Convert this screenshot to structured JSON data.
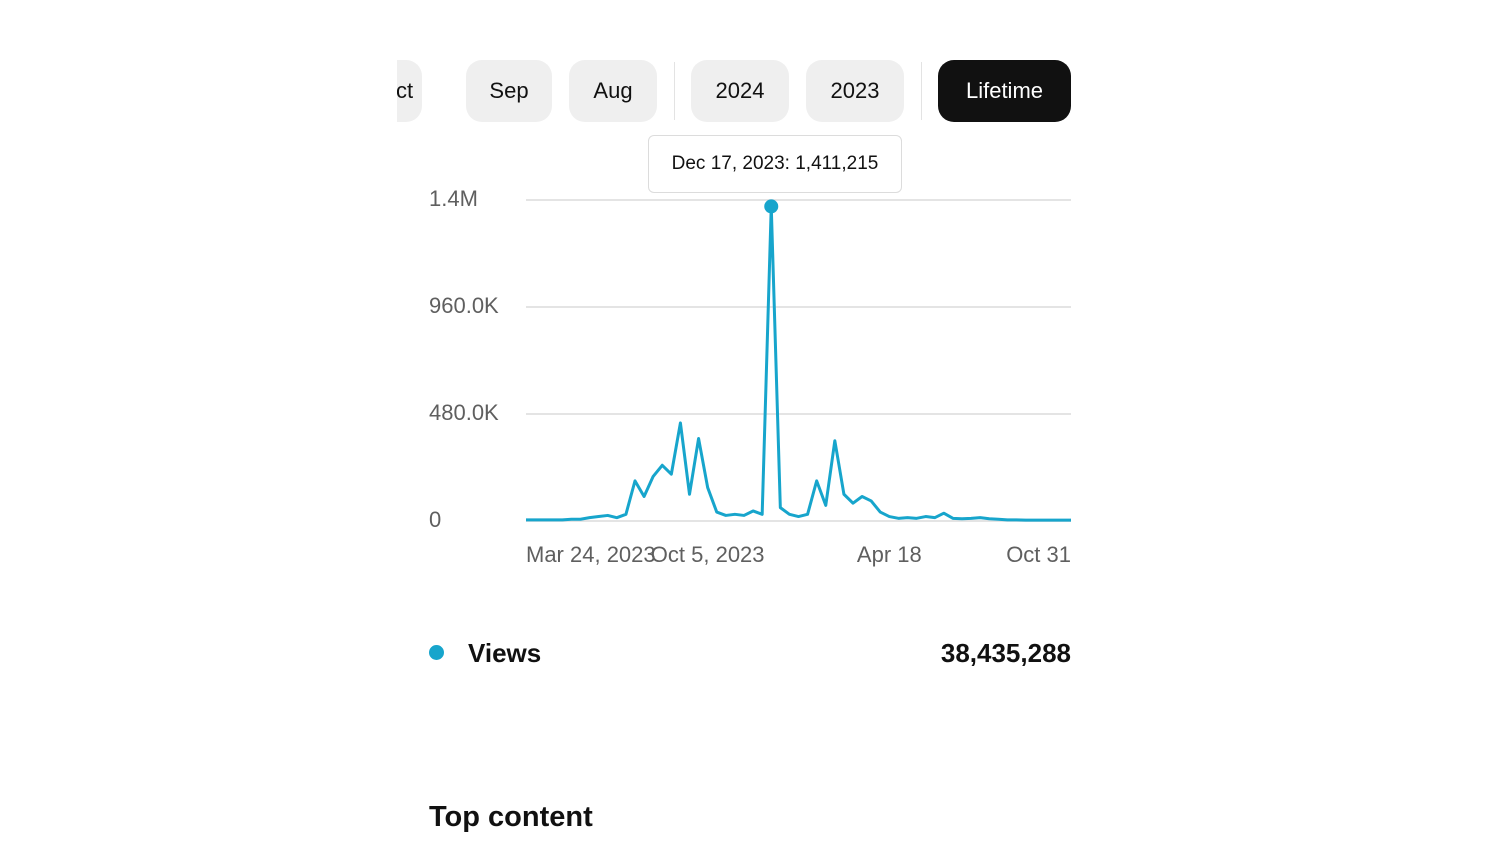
{
  "tabs": [
    "Oct",
    "Sep",
    "Aug",
    "2024",
    "2023",
    "Lifetime"
  ],
  "selected_tab": 5,
  "tooltip": "Dec 17, 2023: 1,411,215",
  "chart_data": {
    "type": "line",
    "categories": [
      "Mar 24, 2023",
      null,
      null,
      null,
      null,
      null,
      null,
      null,
      null,
      null,
      null,
      null,
      null,
      null,
      null,
      null,
      null,
      null,
      null,
      null,
      "Oct 5, 2023",
      null,
      null,
      null,
      null,
      null,
      null,
      null,
      null,
      null,
      null,
      null,
      null,
      null,
      null,
      null,
      null,
      null,
      null,
      null,
      "Apr 18",
      null,
      null,
      null,
      null,
      null,
      null,
      null,
      null,
      null,
      null,
      null,
      null,
      null,
      null,
      null,
      null,
      null,
      null,
      null,
      "Oct 31"
    ],
    "series": [
      {
        "name": "Views",
        "color": "#17a5cc",
        "values": [
          5000,
          5000,
          5000,
          5000,
          5000,
          8000,
          8000,
          15000,
          20000,
          25000,
          15000,
          30000,
          180000,
          110000,
          200000,
          250000,
          210000,
          440000,
          120000,
          370000,
          150000,
          40000,
          25000,
          30000,
          25000,
          45000,
          30000,
          1411215,
          60000,
          30000,
          20000,
          30000,
          180000,
          70000,
          360000,
          120000,
          80000,
          110000,
          90000,
          40000,
          20000,
          12000,
          15000,
          12000,
          20000,
          15000,
          35000,
          12000,
          10000,
          12000,
          15000,
          10000,
          8000,
          5000,
          5000,
          4000,
          4000,
          4000,
          4000,
          4000,
          4000
        ]
      }
    ],
    "ylim": [
      0,
      1440000
    ],
    "yticks": [
      0,
      {
        "value": 480000,
        "label": "480.0K"
      },
      {
        "value": 960000,
        "label": "960.0K"
      },
      {
        "value": 1440000,
        "label": "1.4M"
      }
    ],
    "grid": true
  },
  "total": "38,435,288",
  "section_title": "Top content"
}
